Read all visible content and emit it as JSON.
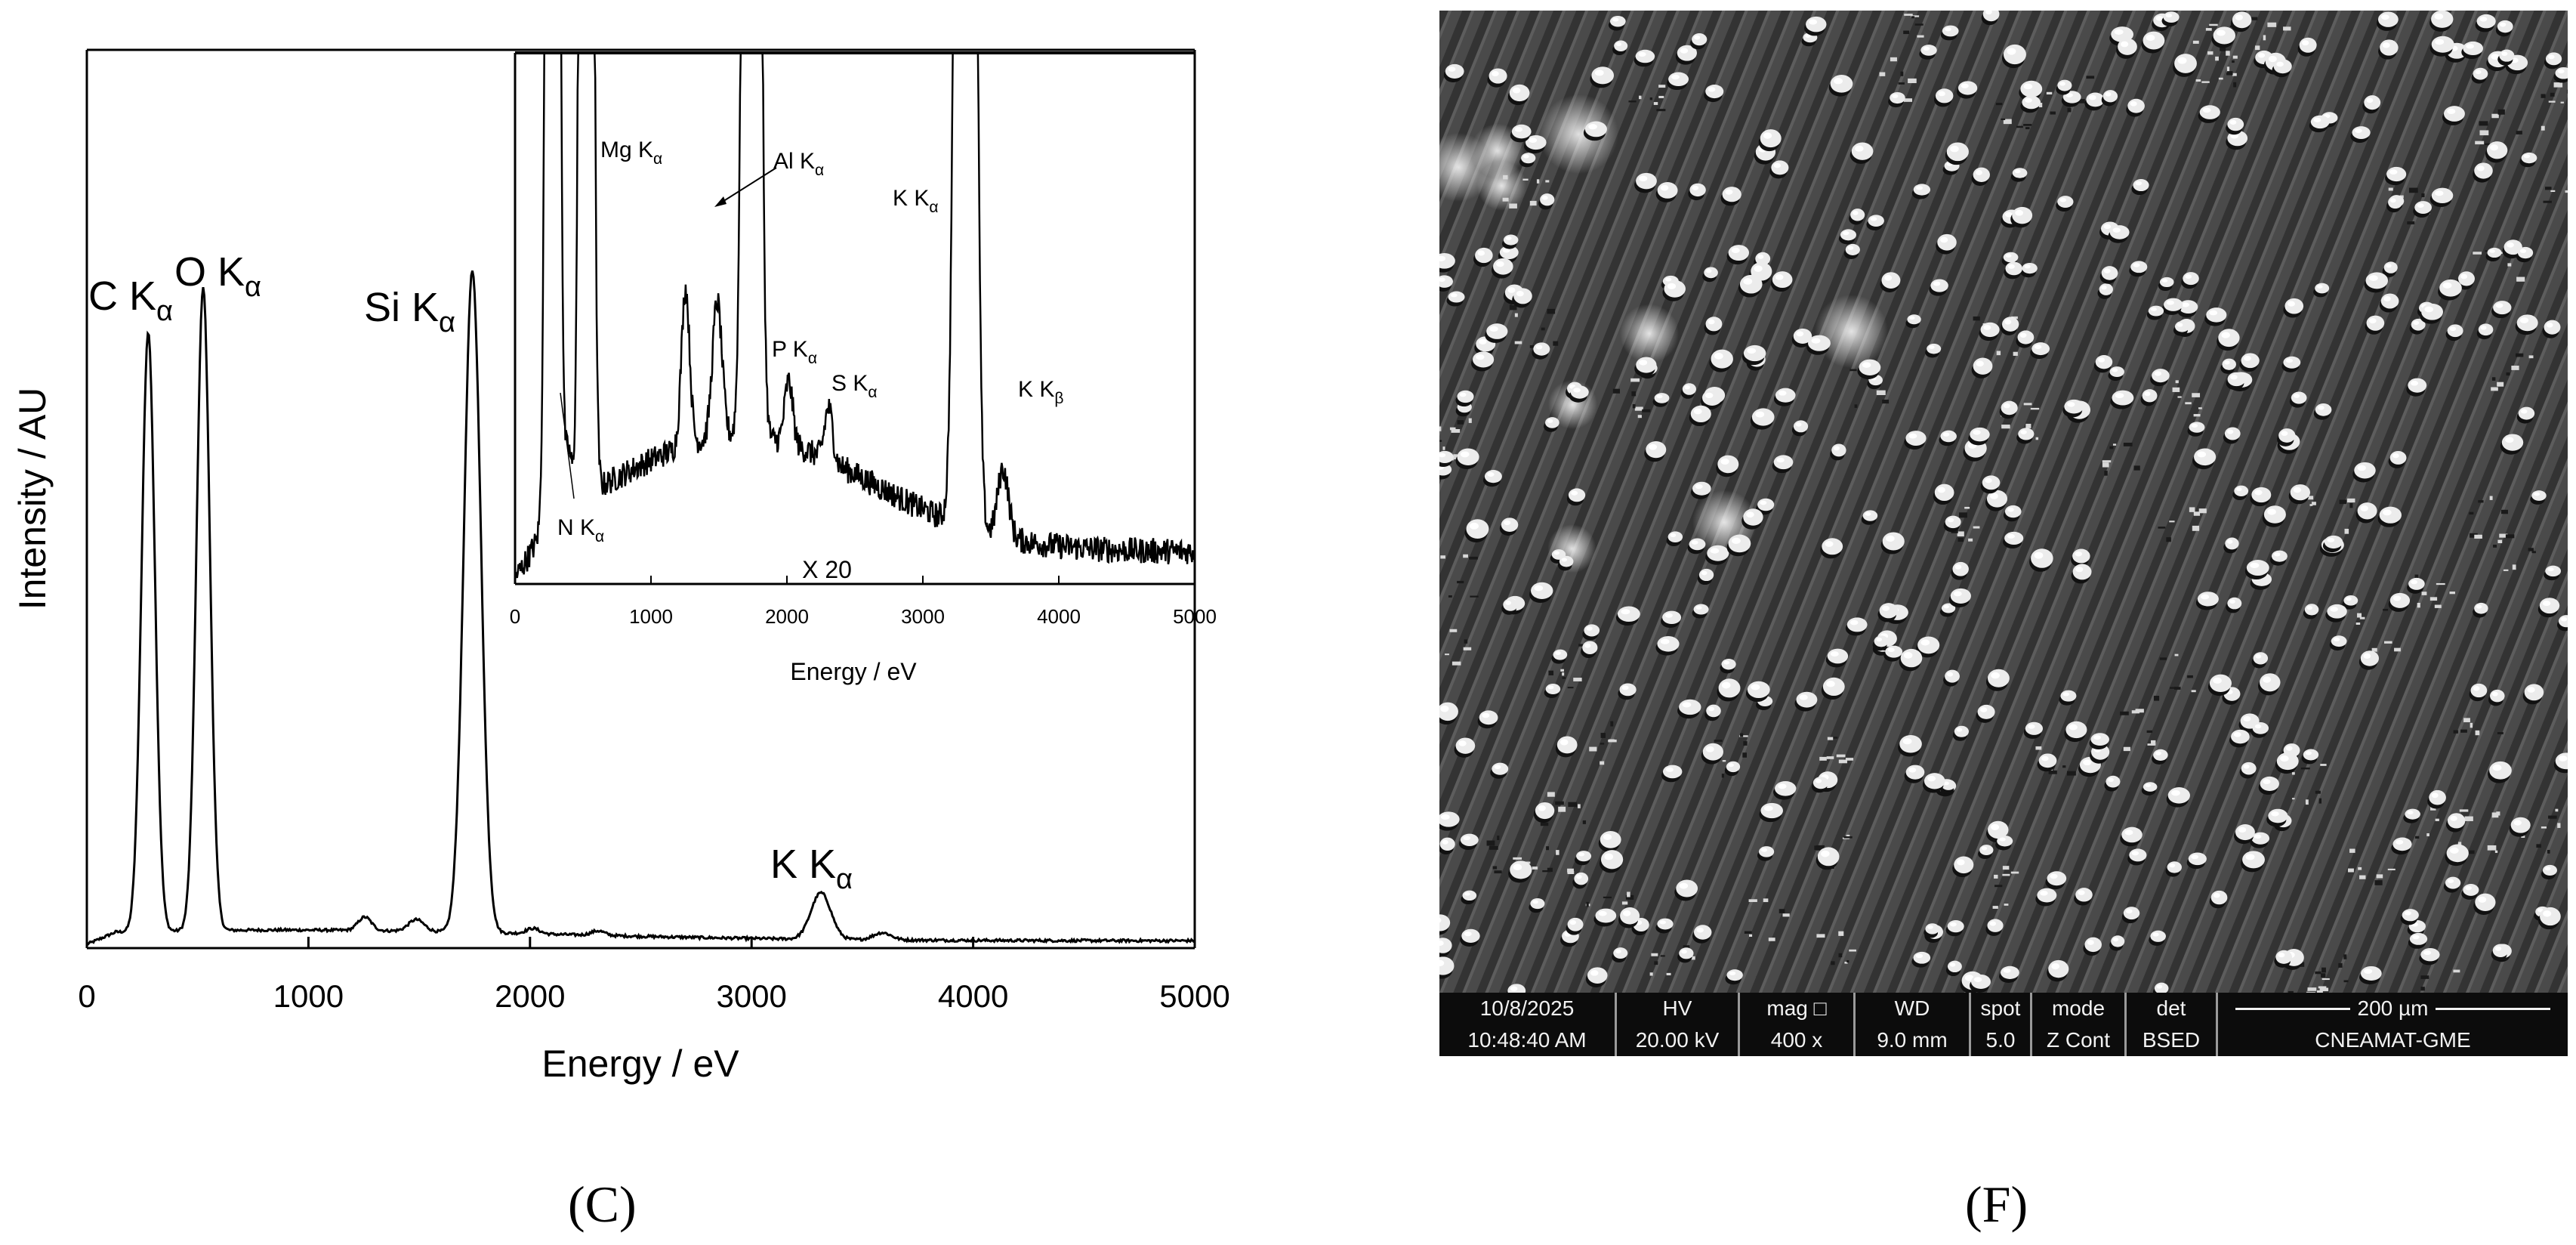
{
  "panel_labels": {
    "left": "(C)",
    "right": "(F)"
  },
  "chart_data": [
    {
      "type": "line",
      "name": "EDS spectrum",
      "xlabel": "Energy / eV",
      "ylabel": "Intensity / AU",
      "xlim": [
        0,
        5000
      ],
      "xticks": [
        0,
        1000,
        2000,
        3000,
        4000,
        5000
      ],
      "ylim": [
        0,
        1
      ],
      "yticks_shown": false,
      "peaks": [
        {
          "center": 277,
          "height": 0.67,
          "width": 30
        },
        {
          "center": 525,
          "height": 0.72,
          "width": 30
        },
        {
          "center": 1740,
          "height": 0.74,
          "width": 38
        },
        {
          "center": 3313,
          "height": 0.052,
          "width": 45
        },
        {
          "center": 1254,
          "height": 0.015,
          "width": 30
        },
        {
          "center": 1487,
          "height": 0.013,
          "width": 35
        },
        {
          "center": 2013,
          "height": 0.006,
          "width": 30
        },
        {
          "center": 2307,
          "height": 0.005,
          "width": 30
        },
        {
          "center": 3590,
          "height": 0.008,
          "width": 40
        }
      ],
      "annotations": [
        {
          "label": "C K",
          "sub": "α",
          "x": 277
        },
        {
          "label": "O K",
          "sub": "α",
          "x": 525
        },
        {
          "label": "Si K",
          "sub": "α",
          "x": 1740
        },
        {
          "label": "K K",
          "sub": "α",
          "x": 3313
        }
      ]
    },
    {
      "type": "line",
      "name": "inset ×20",
      "xlabel": "Energy / eV",
      "ylabel": "",
      "xlim": [
        0,
        5000
      ],
      "xticks": [
        0,
        1000,
        2000,
        3000,
        4000,
        5000
      ],
      "magnification_label": "X 20",
      "peaks": [
        {
          "center": 392,
          "height": 0.1,
          "width": 25
        },
        {
          "center": 1254,
          "height": 0.3,
          "width": 30
        },
        {
          "center": 1487,
          "height": 0.26,
          "width": 35
        },
        {
          "center": 2013,
          "height": 0.12,
          "width": 30
        },
        {
          "center": 2307,
          "height": 0.1,
          "width": 30
        },
        {
          "center": 3590,
          "height": 0.13,
          "width": 40
        }
      ],
      "annotations": [
        {
          "label": "Mg K",
          "sub": "α",
          "x": 1254
        },
        {
          "label": "Al K",
          "sub": "α",
          "x": 1487
        },
        {
          "label": "K K",
          "sub": "α",
          "x": 3313
        },
        {
          "label": "P K",
          "sub": "α",
          "x": 2013
        },
        {
          "label": "S K",
          "sub": "α",
          "x": 2307
        },
        {
          "label": "K K",
          "sub": "β",
          "x": 3590
        },
        {
          "label": "N K",
          "sub": "α",
          "x": 392
        }
      ]
    }
  ],
  "sem_image": {
    "databar": {
      "date": "10/8/2025",
      "time": "10:48:40 AM",
      "hv_label": "HV",
      "hv_value": "20.00 kV",
      "mag_label": "mag □",
      "mag_value": "400 x",
      "wd_label": "WD",
      "wd_value": "9.0 mm",
      "spot_label": "spot",
      "spot_value": "5.0",
      "mode_label": "mode",
      "mode_value": "Z Cont",
      "det_label": "det",
      "det_value": "BSED",
      "scale_label": "200 µm",
      "lab_name": "CNEAMAT-GME"
    }
  }
}
